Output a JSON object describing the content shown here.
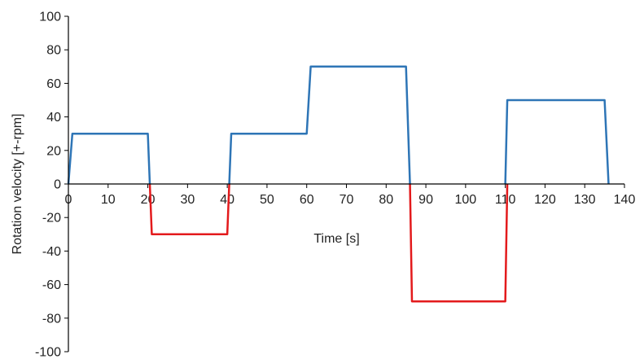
{
  "chart_data": {
    "type": "line",
    "title": "",
    "xlabel": "Time [s]",
    "ylabel": "Rotation velocity [+-rpm]",
    "xlim": [
      0,
      140
    ],
    "ylim": [
      -100,
      100
    ],
    "x_ticks": [
      0,
      10,
      20,
      30,
      40,
      50,
      60,
      70,
      80,
      90,
      100,
      110,
      120,
      130,
      140
    ],
    "y_ticks": [
      100,
      80,
      60,
      40,
      20,
      0,
      -20,
      -40,
      -60,
      -80,
      -100
    ],
    "grid": false,
    "legend": "none",
    "series": [
      {
        "color": "#2e75b6",
        "x": [
          0,
          1,
          20,
          20.5
        ],
        "y": [
          0,
          30,
          30,
          0
        ]
      },
      {
        "color": "#e31a1c",
        "x": [
          20.5,
          21,
          40,
          40.5
        ],
        "y": [
          0,
          -30,
          -30,
          0
        ]
      },
      {
        "color": "#2e75b6",
        "x": [
          40.5,
          41,
          60,
          61,
          85,
          86
        ],
        "y": [
          0,
          30,
          30,
          70,
          70,
          0
        ]
      },
      {
        "color": "#e31a1c",
        "x": [
          86,
          86.5,
          110,
          110.5
        ],
        "y": [
          0,
          -70,
          -70,
          0
        ]
      },
      {
        "color": "#2e75b6",
        "x": [
          110,
          110.5,
          135,
          136
        ],
        "y": [
          0,
          50,
          50,
          0
        ]
      }
    ]
  }
}
